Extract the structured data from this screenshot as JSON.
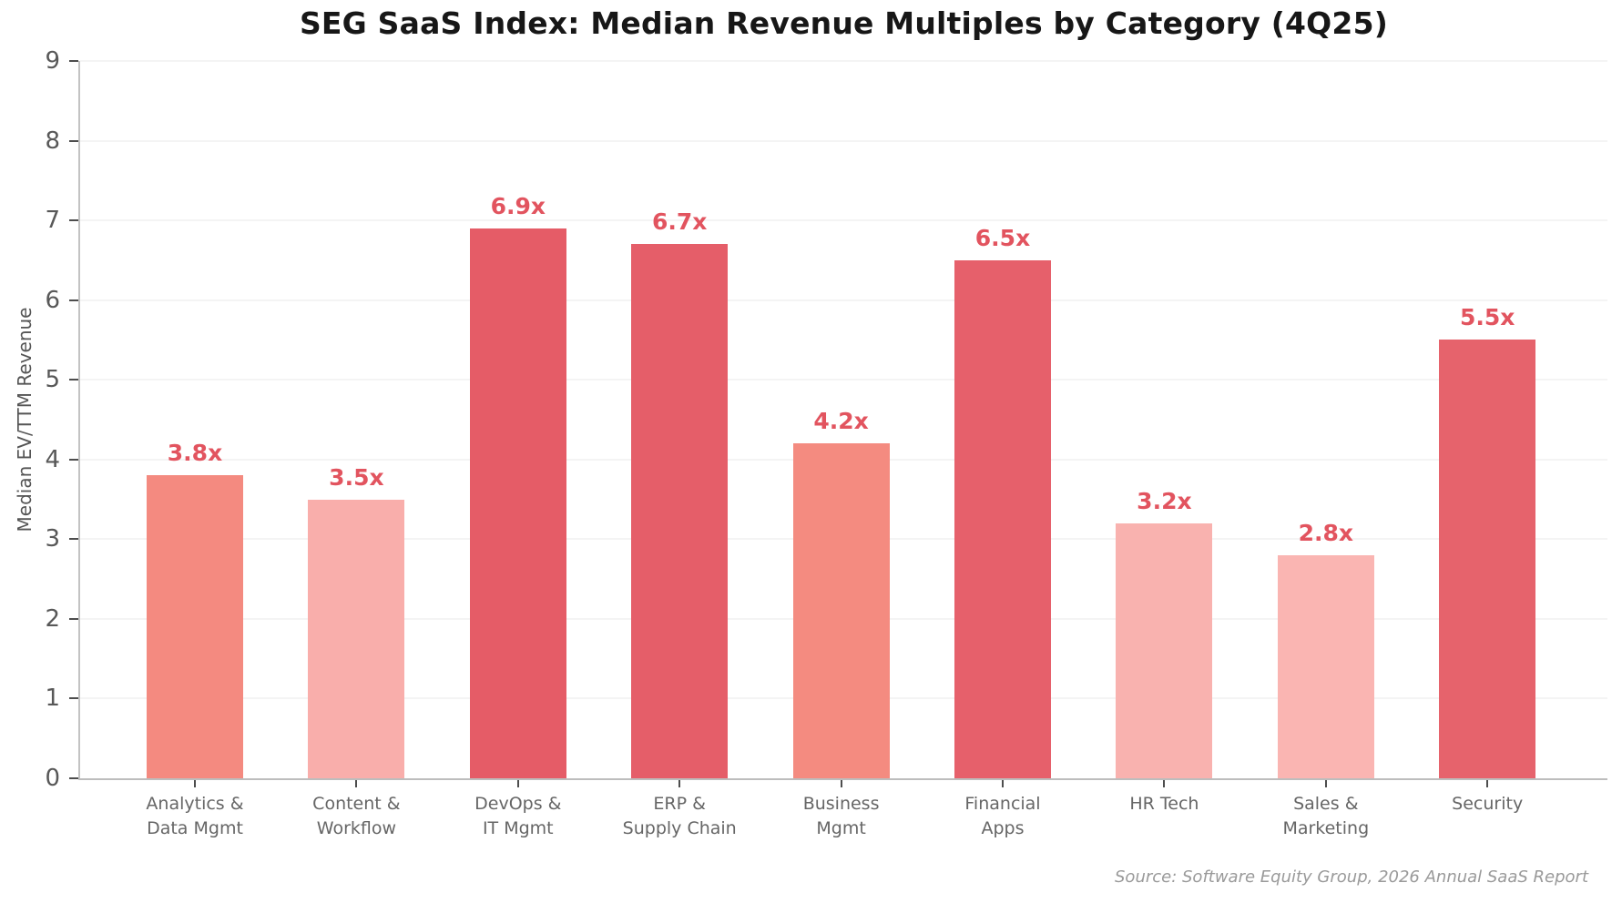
{
  "title": "SEG SaaS Index: Median Revenue Multiples by Category (4Q25)",
  "source_note": "Source: Software Equity Group, 2026 Annual SaaS Report",
  "chart_data": {
    "type": "bar",
    "title": "SEG SaaS Index: Median Revenue Multiples by Category (4Q25)",
    "xlabel": "",
    "ylabel": "Median EV/TTM Revenue",
    "ylim": [
      0,
      9
    ],
    "yticks": [
      0,
      1,
      2,
      3,
      4,
      5,
      6,
      7,
      8,
      9
    ],
    "grid": true,
    "legend": false,
    "categories": [
      "Analytics &\nData Mgmt",
      "Content &\nWorkflow",
      "DevOps &\nIT Mgmt",
      "ERP &\nSupply Chain",
      "Business\nMgmt",
      "Financial\nApps",
      "HR Tech",
      "Sales &\nMarketing",
      "Security"
    ],
    "values": [
      3.8,
      3.5,
      6.9,
      6.7,
      4.2,
      6.5,
      3.2,
      2.8,
      5.5
    ],
    "value_labels": [
      "3.8x",
      "3.5x",
      "6.9x",
      "6.7x",
      "4.2x",
      "6.5x",
      "3.2x",
      "2.8x",
      "5.5x"
    ],
    "bar_colors": [
      "#f48a80",
      "#f9aeab",
      "#e55c67",
      "#e55e69",
      "#f48b80",
      "#e6606b",
      "#f9b2af",
      "#fab5b2",
      "#e6636c"
    ],
    "value_label_color": "#e2545f",
    "annotation": "Source: Software Equity Group, 2026 Annual SaaS Report"
  }
}
